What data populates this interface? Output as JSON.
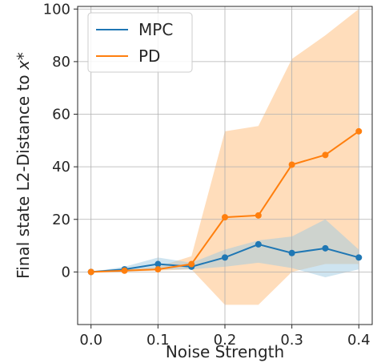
{
  "chart_data": {
    "type": "line",
    "xlabel": "Noise Strength",
    "ylabel": "Final state L2-Distance to x*",
    "ylabel_text": "Final state L2-Distance to ",
    "ylabel_symbol": "x*",
    "xlim": [
      -0.02,
      0.42
    ],
    "ylim": [
      -20,
      101
    ],
    "xticks": [
      0.0,
      0.1,
      0.2,
      0.3,
      0.4
    ],
    "xtick_labels": [
      "0.0",
      "0.1",
      "0.2",
      "0.3",
      "0.4"
    ],
    "yticks": [
      0,
      20,
      40,
      60,
      80,
      100
    ],
    "ytick_labels": [
      "0",
      "20",
      "40",
      "60",
      "80",
      "100"
    ],
    "grid": true,
    "legend_position": "top-left",
    "x": [
      0.0,
      0.05,
      0.1,
      0.15,
      0.2,
      0.25,
      0.3,
      0.35,
      0.4
    ],
    "series": [
      {
        "name": "MPC",
        "color": "#1f77b4",
        "band_color": "#9ecae1",
        "values": [
          0,
          1.0,
          3.0,
          2.0,
          5.5,
          10.5,
          7.2,
          9.0,
          5.5
        ],
        "band_lower": [
          0,
          0.3,
          1.0,
          1.0,
          2.0,
          3.5,
          1.5,
          -2.0,
          1.0
        ],
        "band_upper": [
          0,
          2.0,
          5.5,
          3.5,
          8.5,
          12.0,
          13.5,
          20.0,
          8.5
        ]
      },
      {
        "name": "PD",
        "color": "#ff7f0e",
        "band_color": "#ffbb78",
        "values": [
          0,
          0.5,
          1.0,
          3.0,
          20.8,
          21.5,
          40.8,
          44.5,
          53.5
        ],
        "band_lower": [
          0,
          0.2,
          0.5,
          1.0,
          -12.5,
          -12.5,
          0.0,
          3.0,
          3.0
        ],
        "band_upper": [
          0,
          1.0,
          2.0,
          6.0,
          53.5,
          55.5,
          81.0,
          90.0,
          100.0
        ]
      }
    ]
  }
}
